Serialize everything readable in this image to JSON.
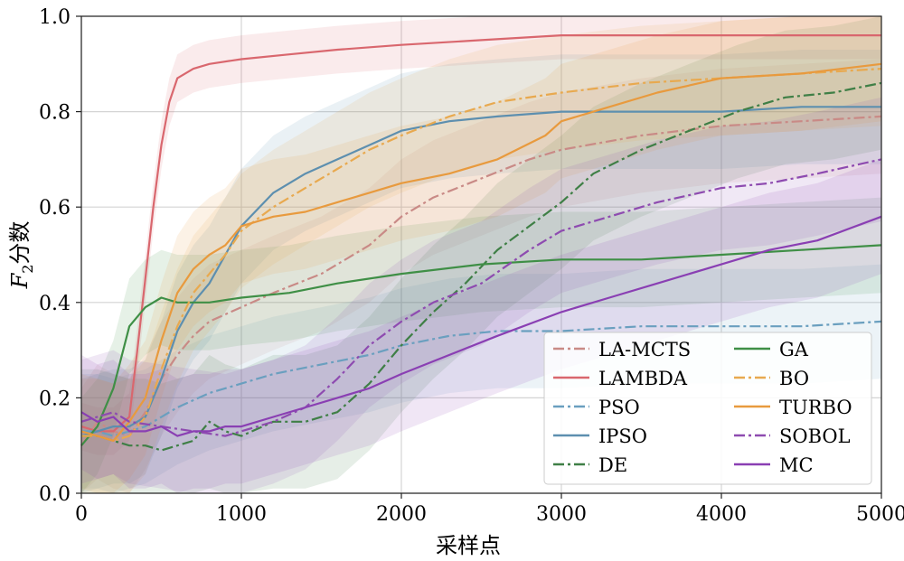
{
  "chart_data": {
    "type": "line",
    "title": "",
    "xlabel": "采样点",
    "ylabel": "F₂分数",
    "xlim": [
      0,
      5000
    ],
    "ylim": [
      0,
      1.0
    ],
    "xticks": [
      0,
      1000,
      2000,
      3000,
      4000,
      5000
    ],
    "xtick_labels": [
      "0",
      "1000",
      "2000",
      "3000",
      "4000",
      "5000"
    ],
    "yticks": [
      0.0,
      0.2,
      0.4,
      0.6,
      0.8,
      1.0
    ],
    "ytick_labels": [
      "0.0",
      "0.2",
      "0.4",
      "0.6",
      "0.8",
      "1.0"
    ],
    "grid": true,
    "legend_position": "bottom-right",
    "legend_columns": 2,
    "series": [
      {
        "name": "LA-MCTS",
        "color": "#c98a86",
        "dash": "dashdot",
        "band": 0.12,
        "points": [
          [
            0,
            0.1
          ],
          [
            100,
            0.15
          ],
          [
            200,
            0.13
          ],
          [
            300,
            0.12
          ],
          [
            400,
            0.17
          ],
          [
            500,
            0.24
          ],
          [
            600,
            0.29
          ],
          [
            700,
            0.33
          ],
          [
            800,
            0.36
          ],
          [
            1000,
            0.39
          ],
          [
            1200,
            0.42
          ],
          [
            1500,
            0.46
          ],
          [
            1800,
            0.52
          ],
          [
            2000,
            0.58
          ],
          [
            2200,
            0.62
          ],
          [
            2500,
            0.66
          ],
          [
            2800,
            0.7
          ],
          [
            3000,
            0.72
          ],
          [
            3500,
            0.75
          ],
          [
            4000,
            0.77
          ],
          [
            4500,
            0.78
          ],
          [
            5000,
            0.79
          ]
        ]
      },
      {
        "name": "LAMBDA",
        "color": "#d9676e",
        "dash": "solid",
        "band": 0.05,
        "points": [
          [
            0,
            0.14
          ],
          [
            100,
            0.13
          ],
          [
            200,
            0.13
          ],
          [
            300,
            0.16
          ],
          [
            350,
            0.3
          ],
          [
            400,
            0.45
          ],
          [
            450,
            0.6
          ],
          [
            500,
            0.73
          ],
          [
            550,
            0.82
          ],
          [
            600,
            0.87
          ],
          [
            700,
            0.89
          ],
          [
            800,
            0.9
          ],
          [
            1000,
            0.91
          ],
          [
            1300,
            0.92
          ],
          [
            1600,
            0.93
          ],
          [
            2000,
            0.94
          ],
          [
            2500,
            0.95
          ],
          [
            3000,
            0.96
          ],
          [
            3500,
            0.96
          ],
          [
            4000,
            0.96
          ],
          [
            4500,
            0.96
          ],
          [
            5000,
            0.96
          ]
        ]
      },
      {
        "name": "PSO",
        "color": "#6a9fbf",
        "dash": "dashdot",
        "band": 0.12,
        "points": [
          [
            0,
            0.13
          ],
          [
            100,
            0.13
          ],
          [
            200,
            0.12
          ],
          [
            400,
            0.14
          ],
          [
            600,
            0.18
          ],
          [
            800,
            0.21
          ],
          [
            1000,
            0.23
          ],
          [
            1200,
            0.25
          ],
          [
            1500,
            0.27
          ],
          [
            1800,
            0.29
          ],
          [
            2000,
            0.31
          ],
          [
            2300,
            0.33
          ],
          [
            2600,
            0.34
          ],
          [
            3000,
            0.34
          ],
          [
            3500,
            0.35
          ],
          [
            4000,
            0.35
          ],
          [
            4500,
            0.35
          ],
          [
            5000,
            0.36
          ]
        ]
      },
      {
        "name": "IPSO",
        "color": "#5d8faf",
        "dash": "solid",
        "band": 0.12,
        "points": [
          [
            0,
            0.12
          ],
          [
            100,
            0.13
          ],
          [
            200,
            0.14
          ],
          [
            300,
            0.14
          ],
          [
            400,
            0.16
          ],
          [
            500,
            0.24
          ],
          [
            600,
            0.34
          ],
          [
            700,
            0.4
          ],
          [
            800,
            0.44
          ],
          [
            900,
            0.5
          ],
          [
            1000,
            0.56
          ],
          [
            1200,
            0.63
          ],
          [
            1400,
            0.67
          ],
          [
            1600,
            0.7
          ],
          [
            1800,
            0.73
          ],
          [
            2000,
            0.76
          ],
          [
            2300,
            0.78
          ],
          [
            2600,
            0.79
          ],
          [
            3000,
            0.8
          ],
          [
            3500,
            0.8
          ],
          [
            4000,
            0.8
          ],
          [
            4500,
            0.81
          ],
          [
            5000,
            0.81
          ]
        ]
      },
      {
        "name": "DE",
        "color": "#3f7f46",
        "dash": "dashdot",
        "band": 0.14,
        "points": [
          [
            0,
            0.12
          ],
          [
            100,
            0.12
          ],
          [
            200,
            0.11
          ],
          [
            300,
            0.1
          ],
          [
            400,
            0.1
          ],
          [
            500,
            0.09
          ],
          [
            600,
            0.1
          ],
          [
            700,
            0.11
          ],
          [
            800,
            0.15
          ],
          [
            900,
            0.13
          ],
          [
            1000,
            0.12
          ],
          [
            1200,
            0.15
          ],
          [
            1400,
            0.15
          ],
          [
            1600,
            0.17
          ],
          [
            1800,
            0.23
          ],
          [
            2000,
            0.31
          ],
          [
            2200,
            0.38
          ],
          [
            2400,
            0.44
          ],
          [
            2600,
            0.51
          ],
          [
            2800,
            0.56
          ],
          [
            3000,
            0.61
          ],
          [
            3200,
            0.67
          ],
          [
            3500,
            0.72
          ],
          [
            3800,
            0.76
          ],
          [
            4100,
            0.8
          ],
          [
            4400,
            0.83
          ],
          [
            4700,
            0.84
          ],
          [
            5000,
            0.86
          ]
        ]
      },
      {
        "name": "GA",
        "color": "#3f8f46",
        "dash": "solid",
        "band": 0.1,
        "points": [
          [
            0,
            0.1
          ],
          [
            100,
            0.14
          ],
          [
            200,
            0.22
          ],
          [
            300,
            0.35
          ],
          [
            400,
            0.39
          ],
          [
            500,
            0.41
          ],
          [
            600,
            0.4
          ],
          [
            800,
            0.4
          ],
          [
            1000,
            0.41
          ],
          [
            1300,
            0.42
          ],
          [
            1600,
            0.44
          ],
          [
            2000,
            0.46
          ],
          [
            2500,
            0.48
          ],
          [
            3000,
            0.49
          ],
          [
            3500,
            0.49
          ],
          [
            4000,
            0.5
          ],
          [
            4500,
            0.51
          ],
          [
            5000,
            0.52
          ]
        ]
      },
      {
        "name": "BO",
        "color": "#e8a94f",
        "dash": "dashdot",
        "band": 0.12,
        "points": [
          [
            0,
            0.12
          ],
          [
            100,
            0.12
          ],
          [
            200,
            0.11
          ],
          [
            300,
            0.12
          ],
          [
            400,
            0.16
          ],
          [
            500,
            0.26
          ],
          [
            600,
            0.35
          ],
          [
            700,
            0.42
          ],
          [
            800,
            0.46
          ],
          [
            900,
            0.5
          ],
          [
            1000,
            0.55
          ],
          [
            1200,
            0.6
          ],
          [
            1400,
            0.64
          ],
          [
            1600,
            0.68
          ],
          [
            1800,
            0.72
          ],
          [
            2000,
            0.75
          ],
          [
            2300,
            0.79
          ],
          [
            2600,
            0.82
          ],
          [
            3000,
            0.84
          ],
          [
            3500,
            0.86
          ],
          [
            4000,
            0.87
          ],
          [
            4500,
            0.88
          ],
          [
            5000,
            0.89
          ]
        ]
      },
      {
        "name": "TURBO",
        "color": "#e89a3e",
        "dash": "solid",
        "band": 0.12,
        "points": [
          [
            0,
            0.13
          ],
          [
            100,
            0.12
          ],
          [
            200,
            0.11
          ],
          [
            300,
            0.15
          ],
          [
            400,
            0.2
          ],
          [
            500,
            0.32
          ],
          [
            600,
            0.42
          ],
          [
            700,
            0.47
          ],
          [
            800,
            0.5
          ],
          [
            900,
            0.52
          ],
          [
            1000,
            0.56
          ],
          [
            1200,
            0.58
          ],
          [
            1400,
            0.59
          ],
          [
            1600,
            0.61
          ],
          [
            1800,
            0.63
          ],
          [
            2000,
            0.65
          ],
          [
            2300,
            0.67
          ],
          [
            2600,
            0.7
          ],
          [
            2900,
            0.75
          ],
          [
            3000,
            0.78
          ],
          [
            3300,
            0.81
          ],
          [
            3600,
            0.84
          ],
          [
            4000,
            0.87
          ],
          [
            4500,
            0.88
          ],
          [
            5000,
            0.9
          ]
        ]
      },
      {
        "name": "SOBOL",
        "color": "#8e4bb0",
        "dash": "dashdot",
        "band": 0.13,
        "points": [
          [
            0,
            0.15
          ],
          [
            100,
            0.16
          ],
          [
            200,
            0.17
          ],
          [
            300,
            0.15
          ],
          [
            500,
            0.14
          ],
          [
            700,
            0.13
          ],
          [
            900,
            0.12
          ],
          [
            1000,
            0.13
          ],
          [
            1200,
            0.15
          ],
          [
            1400,
            0.18
          ],
          [
            1600,
            0.24
          ],
          [
            1800,
            0.31
          ],
          [
            2000,
            0.36
          ],
          [
            2200,
            0.4
          ],
          [
            2500,
            0.44
          ],
          [
            2800,
            0.51
          ],
          [
            3000,
            0.55
          ],
          [
            3300,
            0.58
          ],
          [
            3600,
            0.61
          ],
          [
            4000,
            0.64
          ],
          [
            4300,
            0.65
          ],
          [
            4600,
            0.67
          ],
          [
            5000,
            0.7
          ]
        ]
      },
      {
        "name": "MC",
        "color": "#8a3fb3",
        "dash": "solid",
        "band": 0.12,
        "points": [
          [
            0,
            0.17
          ],
          [
            100,
            0.15
          ],
          [
            200,
            0.16
          ],
          [
            300,
            0.13
          ],
          [
            400,
            0.13
          ],
          [
            500,
            0.14
          ],
          [
            600,
            0.12
          ],
          [
            700,
            0.13
          ],
          [
            800,
            0.13
          ],
          [
            900,
            0.14
          ],
          [
            1000,
            0.14
          ],
          [
            1200,
            0.16
          ],
          [
            1400,
            0.18
          ],
          [
            1600,
            0.2
          ],
          [
            1800,
            0.22
          ],
          [
            2000,
            0.25
          ],
          [
            2300,
            0.29
          ],
          [
            2600,
            0.33
          ],
          [
            3000,
            0.38
          ],
          [
            3300,
            0.41
          ],
          [
            3600,
            0.44
          ],
          [
            4000,
            0.48
          ],
          [
            4300,
            0.51
          ],
          [
            4600,
            0.53
          ],
          [
            5000,
            0.58
          ]
        ]
      }
    ]
  }
}
